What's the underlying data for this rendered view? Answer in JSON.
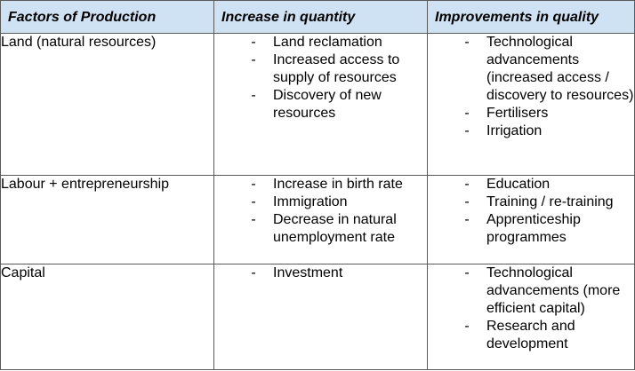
{
  "table": {
    "headers": [
      "Factors of Production",
      "Increase in quantity",
      "Improvements in quality"
    ],
    "rows": [
      {
        "factor": "Land (natural resources)",
        "quantity": [
          "Land reclamation",
          "Increased access to supply of resources",
          "Discovery of new resources"
        ],
        "quality": [
          "Technological advancements (increased access / discovery to resources)",
          "Fertilisers",
          "Irrigation"
        ]
      },
      {
        "factor": "Labour + entrepreneurship",
        "quantity": [
          "Increase in birth rate",
          "Immigration",
          "Decrease in natural unemployment rate"
        ],
        "quality": [
          "Education",
          "Training / re-training",
          "Apprenticeship programmes"
        ]
      },
      {
        "factor": "Capital",
        "quantity": [
          "Investment"
        ],
        "quality": [
          "Technological advancements (more efficient capital)",
          "Research and development"
        ]
      }
    ],
    "bullet_marker": "-",
    "header_background": "#cfe2f3",
    "border_color": "#5a5a5a"
  }
}
